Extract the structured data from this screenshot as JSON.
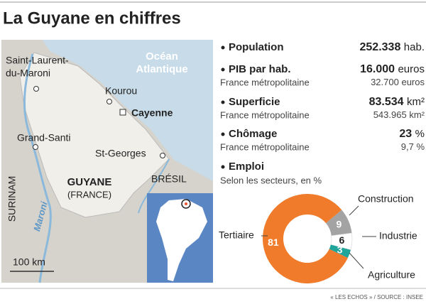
{
  "title": "La Guyane en chiffres",
  "map": {
    "ocean_line1": "Océan",
    "ocean_line2": "Atlantique",
    "saint_laurent_line1": "Saint-Laurent-",
    "saint_laurent_line2": "du-Maroni",
    "kourou": "Kourou",
    "cayenne": "Cayenne",
    "grand_santi": "Grand-Santi",
    "st_georges": "St-Georges",
    "guyane": "GUYANE",
    "france": "(FRANCE)",
    "bresil": "BRÉSIL",
    "surinam": "SURINAM",
    "river": "Maroni",
    "scale": "100 km"
  },
  "stats": {
    "population": {
      "label": "Population",
      "value": "252.338",
      "unit": "hab."
    },
    "pib": {
      "label": "PIB par hab.",
      "value": "16.000",
      "unit": "euros",
      "compare_label": "France métropolitaine",
      "compare_value": "32.700",
      "compare_unit": "euros"
    },
    "superficie": {
      "label": "Superficie",
      "value": "83.534",
      "unit": "km²",
      "compare_label": "France métropolitaine",
      "compare_value": "543.965",
      "compare_unit": "km²"
    },
    "chomage": {
      "label": "Chômage",
      "value": "23",
      "unit": "%",
      "compare_label": "France métropolitaine",
      "compare_value": "9,7",
      "compare_unit": "%"
    }
  },
  "chart_data": {
    "type": "donut",
    "title": "Emploi",
    "subtitle": "Selon les secteurs, en %",
    "categories": [
      "Construction",
      "Industrie",
      "Agriculture",
      "Tertiaire"
    ],
    "values": [
      9,
      6,
      3,
      81
    ],
    "colors": [
      "#a3a3a3",
      "#ffffff",
      "#1fa59a",
      "#f07b2b"
    ]
  },
  "source": "« LES ECHOS » / SOURCE : INSEE"
}
